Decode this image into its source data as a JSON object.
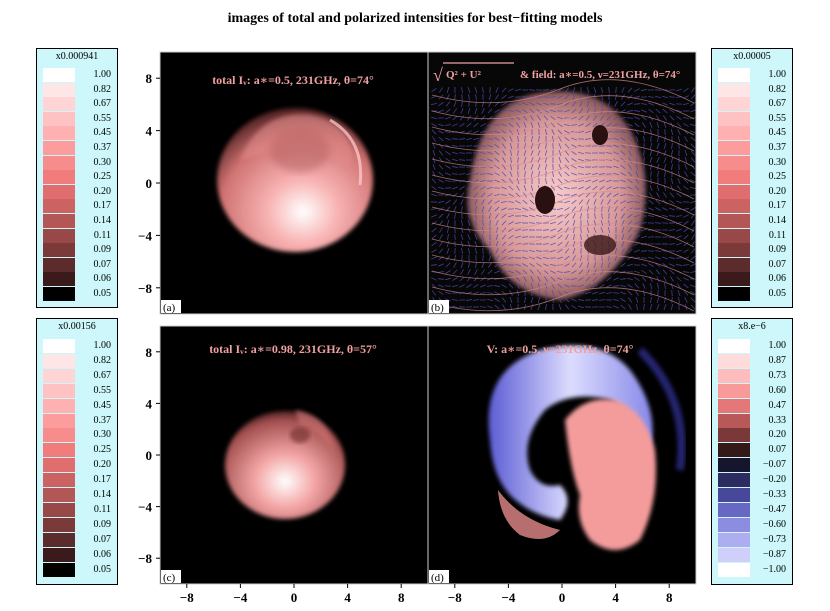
{
  "figure": {
    "title": "images of total and polarized intensities for best−fitting models"
  },
  "colorbars": [
    {
      "id": "cb-tl",
      "scale": "x0.000941",
      "labels": [
        "1.00",
        "0.82",
        "0.67",
        "0.55",
        "0.45",
        "0.37",
        "0.30",
        "0.25",
        "0.20",
        "0.17",
        "0.14",
        "0.11",
        "0.09",
        "0.07",
        "0.06",
        "0.05"
      ],
      "colors": [
        "#ffffff",
        "#ffe6e6",
        "#ffd4d4",
        "#ffc2c2",
        "#ffb0b0",
        "#fc9c9c",
        "#f78c8c",
        "#f07c7c",
        "#e06e6e",
        "#cc6262",
        "#b35656",
        "#994848",
        "#7a3a3a",
        "#5c2b2b",
        "#3a1a1a",
        "#000000"
      ]
    },
    {
      "id": "cb-tr",
      "scale": "x0.00005",
      "labels": [
        "1.00",
        "0.82",
        "0.67",
        "0.55",
        "0.45",
        "0.37",
        "0.30",
        "0.25",
        "0.20",
        "0.17",
        "0.14",
        "0.11",
        "0.09",
        "0.07",
        "0.06",
        "0.05"
      ],
      "colors": [
        "#ffffff",
        "#ffe6e6",
        "#ffd4d4",
        "#ffc2c2",
        "#ffb0b0",
        "#fc9c9c",
        "#f78c8c",
        "#f07c7c",
        "#e06e6e",
        "#cc6262",
        "#b35656",
        "#994848",
        "#7a3a3a",
        "#5c2b2b",
        "#3a1a1a",
        "#000000"
      ]
    },
    {
      "id": "cb-bl",
      "scale": "x0.00156",
      "labels": [
        "1.00",
        "0.82",
        "0.67",
        "0.55",
        "0.45",
        "0.37",
        "0.30",
        "0.25",
        "0.20",
        "0.17",
        "0.14",
        "0.11",
        "0.09",
        "0.07",
        "0.06",
        "0.05"
      ],
      "colors": [
        "#ffffff",
        "#ffe6e6",
        "#ffd4d4",
        "#ffc2c2",
        "#ffb0b0",
        "#fc9c9c",
        "#f78c8c",
        "#f07c7c",
        "#e06e6e",
        "#cc6262",
        "#b35656",
        "#994848",
        "#7a3a3a",
        "#5c2b2b",
        "#3a1a1a",
        "#000000"
      ]
    },
    {
      "id": "cb-br",
      "scale": "x8.e−6",
      "labels": [
        "1.00",
        "0.87",
        "0.73",
        "0.60",
        "0.47",
        "0.33",
        "0.20",
        "0.07",
        "−0.07",
        "−0.20",
        "−0.33",
        "−0.47",
        "−0.60",
        "−0.73",
        "−0.87",
        "−1.00"
      ],
      "colors": [
        "#ffffff",
        "#ffdcdc",
        "#ffbcbc",
        "#f89a9a",
        "#e47878",
        "#b85858",
        "#7a3838",
        "#351818",
        "#15152e",
        "#2c2c60",
        "#48489a",
        "#6868c4",
        "#8c8ce0",
        "#adadf0",
        "#cfcffa",
        "#ffffff"
      ]
    }
  ],
  "chart_data": {
    "type": "heatmap",
    "xlim": [
      -10,
      10
    ],
    "ylim": [
      -10,
      10
    ],
    "xticks": [
      -8,
      -4,
      0,
      4,
      8
    ],
    "yticks": [
      -8,
      -4,
      0,
      4,
      8
    ],
    "tick_labels": [
      "−8",
      "−4",
      "0",
      "4",
      "8"
    ],
    "panels": [
      {
        "id": "a",
        "tag": "(a)",
        "title": "total  Iᵥ: a∗=0.5,  231GHz,   θ=74°",
        "quantity": "total intensity",
        "spin": 0.5,
        "frequency_GHz": 231,
        "inclination_deg": 74
      },
      {
        "id": "b",
        "tag": "(b)",
        "title_sqrt": "√",
        "title_quantity": "Q² + U²",
        "title": "& field: a∗=0.5,  ν=231GHz,   θ=74°",
        "quantity": "polarized intensity with field lines",
        "spin": 0.5,
        "frequency_GHz": 231,
        "inclination_deg": 74
      },
      {
        "id": "c",
        "tag": "(c)",
        "title": "total  Iᵥ: a∗=0.98,  231GHz,   θ=57°",
        "quantity": "total intensity",
        "spin": 0.98,
        "frequency_GHz": 231,
        "inclination_deg": 57
      },
      {
        "id": "d",
        "tag": "(d)",
        "title": "V: a∗=0.5,  ν=231GHz,   θ=74°",
        "quantity": "circular polarization",
        "spin": 0.5,
        "frequency_GHz": 231,
        "inclination_deg": 74
      }
    ]
  }
}
